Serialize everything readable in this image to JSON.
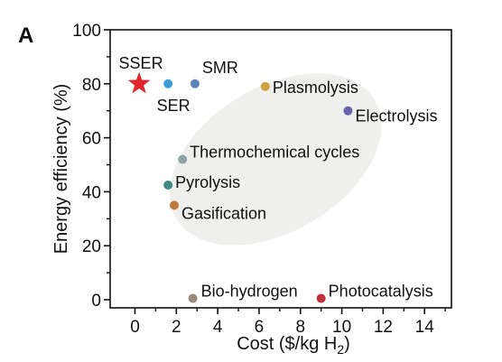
{
  "chart_data": {
    "type": "scatter",
    "panel_label": "A",
    "xlabel": "Cost ($/kg H",
    "xlabel_subscript": "2",
    "xlabel_suffix": ")",
    "ylabel": "Energy efficiency (%)",
    "xlim": [
      -1.2,
      15.3
    ],
    "ylim": [
      -3,
      100
    ],
    "x_ticks": [
      0,
      2,
      4,
      6,
      8,
      10,
      12,
      14
    ],
    "x_tick_labels": [
      "0",
      "2",
      "4",
      "6",
      "8",
      "10",
      "12",
      "14"
    ],
    "y_ticks": [
      0,
      20,
      40,
      60,
      80,
      100
    ],
    "y_tick_labels": [
      "0",
      "20",
      "40",
      "60",
      "80",
      "100"
    ],
    "grid": false,
    "highlight_region": {
      "shape": "ellipse",
      "center": [
        6.8,
        52
      ],
      "color": "#efefed"
    },
    "points": [
      {
        "label": "SSER",
        "x": 0.2,
        "y": 80,
        "marker": "star",
        "color": "#e0262c",
        "label_color": "#e0262c"
      },
      {
        "label": "SER",
        "x": 1.6,
        "y": 80,
        "marker": "circle",
        "color": "#3d9ed6"
      },
      {
        "label": "SMR",
        "x": 2.9,
        "y": 80,
        "marker": "circle",
        "color": "#5b84b8"
      },
      {
        "label": "Plasmolysis",
        "x": 6.3,
        "y": 79,
        "marker": "circle",
        "color": "#cfa43f"
      },
      {
        "label": "Electrolysis",
        "x": 10.3,
        "y": 70,
        "marker": "circle",
        "color": "#6a63a8"
      },
      {
        "label": "Thermochemical cycles",
        "x": 2.3,
        "y": 52,
        "marker": "circle",
        "color": "#8fa5a3"
      },
      {
        "label": "Pyrolysis",
        "x": 1.6,
        "y": 42.5,
        "marker": "circle",
        "color": "#3f8a84"
      },
      {
        "label": "Gasification",
        "x": 1.9,
        "y": 35,
        "marker": "circle",
        "color": "#bd7a3d"
      },
      {
        "label": "Bio-hydrogen",
        "x": 2.8,
        "y": 0.5,
        "marker": "circle",
        "color": "#9a8a7c"
      },
      {
        "label": "Photocatalysis",
        "x": 9.0,
        "y": 0.5,
        "marker": "circle",
        "color": "#c0303a"
      }
    ]
  }
}
